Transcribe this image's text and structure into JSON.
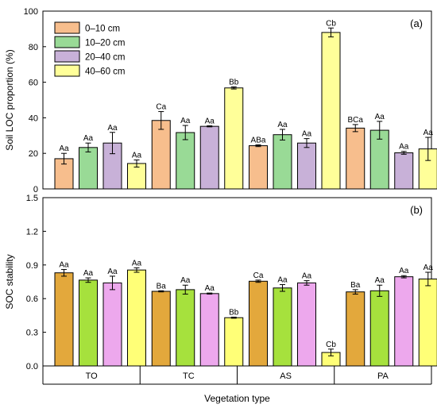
{
  "chart_data": [
    {
      "type": "bar",
      "panel_label": "(a)",
      "ylabel": "Soil LOC proportion (%)",
      "ylim": [
        0,
        100
      ],
      "yticks": [
        0,
        20,
        40,
        60,
        80,
        100
      ],
      "categories": [
        "TO",
        "TC",
        "AS",
        "PA"
      ],
      "legend": {
        "position": "top-left"
      },
      "series": [
        {
          "name": "0–10 cm",
          "color": "#F7BE8D",
          "values": [
            17,
            38.5,
            24.3,
            34.2
          ],
          "errors": [
            3,
            5,
            0.5,
            2
          ],
          "labels": [
            "Aa",
            "Ca",
            "ABa",
            "BCa"
          ]
        },
        {
          "name": "10–20 cm",
          "color": "#99DA96",
          "values": [
            23.3,
            31.7,
            30.5,
            33
          ],
          "errors": [
            2.5,
            4,
            3,
            5
          ],
          "labels": [
            "Aa",
            "Aa",
            "Aa",
            "Aa"
          ]
        },
        {
          "name": "20–40 cm",
          "color": "#C8B1D8",
          "values": [
            25.8,
            35.2,
            25.8,
            20.3
          ],
          "errors": [
            6,
            0.3,
            2.5,
            0.8
          ],
          "labels": [
            "Aa",
            "Aa",
            "Aa",
            "Aa"
          ]
        },
        {
          "name": "40–60 cm",
          "color": "#FFFF99",
          "values": [
            14.3,
            56.8,
            88,
            22.5
          ],
          "errors": [
            2,
            0.6,
            2.5,
            6.5
          ],
          "labels": [
            "Aa",
            "Bb",
            "Cb",
            "Aa"
          ]
        }
      ]
    },
    {
      "type": "bar",
      "panel_label": "(b)",
      "ylabel": "SOC stability",
      "xlabel": "Vegetation type",
      "ylim": [
        0,
        1.5
      ],
      "yticks": [
        "0.0",
        "0.3",
        "0.6",
        "0.9",
        "1.2",
        "1.5"
      ],
      "categories": [
        "TO",
        "TC",
        "AS",
        "PA"
      ],
      "series": [
        {
          "name": "0–10 cm",
          "color": "#E3A83C",
          "values": [
            0.83,
            0.665,
            0.755,
            0.66
          ],
          "errors": [
            0.03,
            0.005,
            0.01,
            0.02
          ],
          "labels": [
            "Aa",
            "Ba",
            "Ca",
            "Ba"
          ]
        },
        {
          "name": "10–20 cm",
          "color": "#A6E13D",
          "values": [
            0.765,
            0.68,
            0.695,
            0.67
          ],
          "errors": [
            0.02,
            0.04,
            0.03,
            0.05
          ],
          "labels": [
            "Aa",
            "Aa",
            "Aa",
            "Aa"
          ]
        },
        {
          "name": "20–40 cm",
          "color": "#EDA8ED",
          "values": [
            0.74,
            0.645,
            0.74,
            0.795
          ],
          "errors": [
            0.06,
            0.005,
            0.02,
            0.01
          ],
          "labels": [
            "Aa",
            "Aa",
            "Aa",
            "Aa"
          ]
        },
        {
          "name": "40–60 cm",
          "color": "#FFFF77",
          "values": [
            0.855,
            0.43,
            0.12,
            0.775
          ],
          "errors": [
            0.02,
            0.005,
            0.03,
            0.06
          ],
          "labels": [
            "Aa",
            "Bb",
            "Cb",
            "Aa"
          ]
        }
      ]
    }
  ]
}
